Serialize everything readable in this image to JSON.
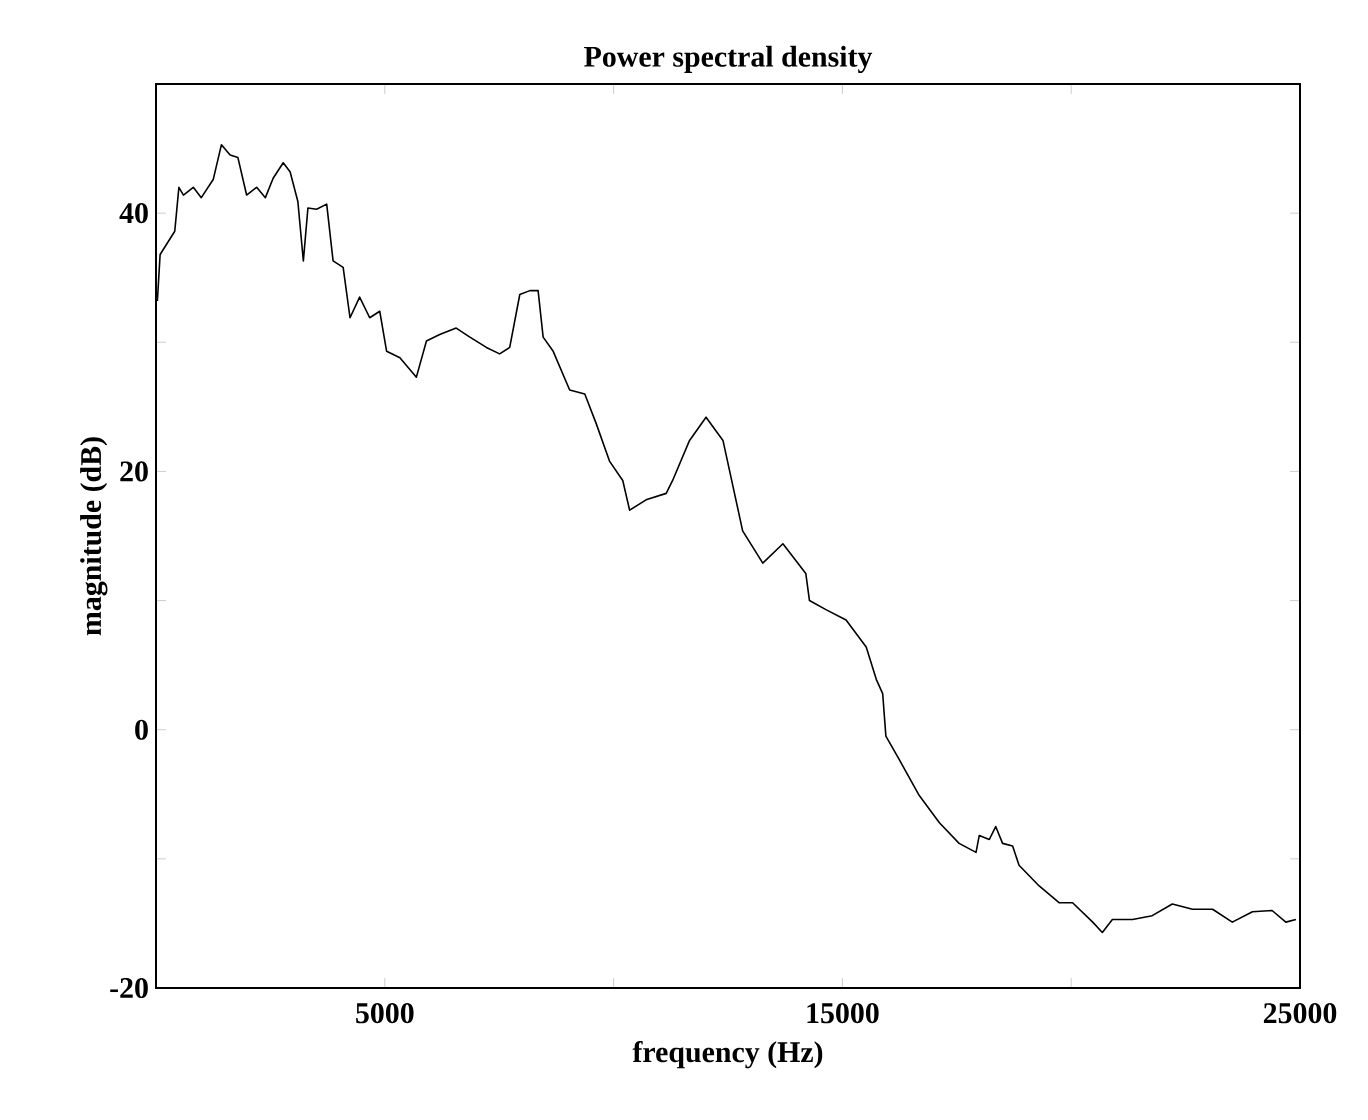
{
  "chart_data": {
    "type": "line",
    "title": "Power spectral density",
    "xlabel": "frequency (Hz)",
    "ylabel": "magnitude (dB)",
    "color": "#000000",
    "xlim": [
      0,
      25000
    ],
    "ylim": [
      -20,
      50
    ],
    "xticks": [
      5000,
      {
        "value": 10000,
        "label": null
      },
      15000,
      {
        "value": 20000,
        "label": null
      },
      25000
    ],
    "yticks": [
      -20,
      {
        "value": -10,
        "label": null
      },
      0,
      {
        "value": 10,
        "label": null
      },
      20,
      {
        "value": 30,
        "label": null
      },
      40
    ],
    "x": [
      30,
      90,
      410,
      500,
      600,
      815,
      990,
      1250,
      1430,
      1620,
      1790,
      1980,
      2200,
      2390,
      2560,
      2780,
      2930,
      3100,
      3220,
      3320,
      3510,
      3730,
      3870,
      4090,
      4240,
      4450,
      4670,
      4890,
      5040,
      5330,
      5690,
      5910,
      6200,
      6560,
      6860,
      7220,
      7510,
      7730,
      7950,
      8170,
      8350,
      8460,
      8680,
      9040,
      9370,
      9620,
      9910,
      10200,
      10350,
      10710,
      11150,
      11290,
      11660,
      12020,
      12390,
      12820,
      13260,
      13700,
      14200,
      14280,
      14640,
      15080,
      15520,
      15740,
      15880,
      15950,
      16240,
      16680,
      17120,
      17550,
      17920,
      17990,
      18210,
      18350,
      18500,
      18720,
      18860,
      19300,
      19740,
      20030,
      20470,
      20680,
      20900,
      21340,
      21770,
      22210,
      22650,
      23090,
      23520,
      23960,
      24390,
      24690,
      24910
    ],
    "values": [
      33.2,
      36.8,
      38.6,
      42,
      41.4,
      42,
      41.2,
      42.6,
      45.3,
      44.5,
      44.3,
      41.4,
      42,
      41.2,
      42.7,
      43.9,
      43.2,
      40.9,
      36.3,
      40.4,
      40.3,
      40.7,
      36.3,
      35.8,
      31.9,
      33.5,
      31.9,
      32.4,
      29.3,
      28.8,
      27.3,
      30.1,
      30.6,
      31.1,
      30.4,
      29.6,
      29.1,
      29.6,
      33.7,
      34,
      34,
      30.4,
      29.3,
      26.3,
      26,
      23.7,
      20.8,
      19.3,
      17,
      17.8,
      18.3,
      19.3,
      22.4,
      24.2,
      22.4,
      15.4,
      12.9,
      14.4,
      12.1,
      10,
      9.3,
      8.5,
      6.4,
      3.9,
      2.8,
      -0.5,
      -2.3,
      -5.1,
      -7.2,
      -8.8,
      -9.5,
      -8.2,
      -8.5,
      -7.5,
      -8.8,
      -9,
      -10.5,
      -12.1,
      -13.4,
      -13.4,
      -14.9,
      -15.7,
      -14.7,
      -14.7,
      -14.4,
      -13.5,
      -13.9,
      -13.9,
      -14.9,
      -14.1,
      -14,
      -14.9,
      -14.7
    ]
  }
}
